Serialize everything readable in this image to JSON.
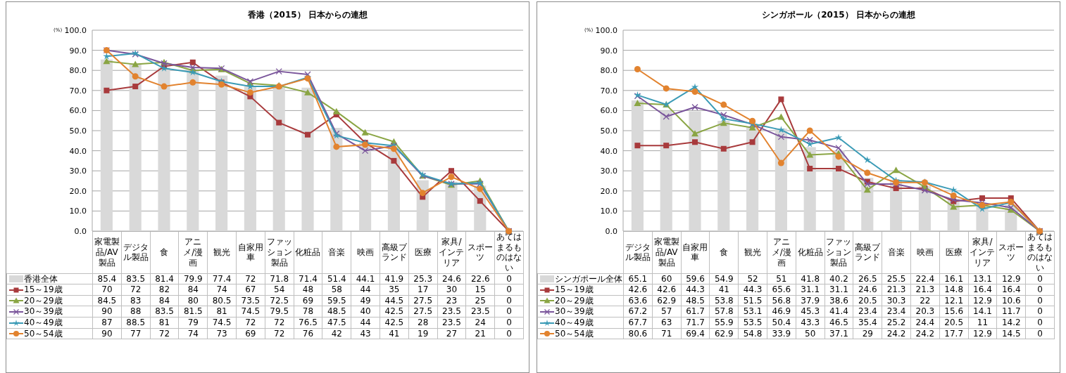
{
  "chart_data": [
    {
      "type": "bar",
      "title": "香港（2015） 日本からの連想",
      "ylabel": "(%)",
      "ylim": [
        0,
        100
      ],
      "yticks": [
        {
          "value": 0,
          "label": "0.0"
        },
        {
          "value": 10,
          "label": "10.0"
        },
        {
          "value": 20,
          "label": "20.0"
        },
        {
          "value": 30,
          "label": "30.0"
        },
        {
          "value": 40,
          "label": "40.0"
        },
        {
          "value": 50,
          "label": "50.0"
        },
        {
          "value": 60,
          "label": "60.0"
        },
        {
          "value": 70,
          "label": "70.0"
        },
        {
          "value": 80,
          "label": "80.0"
        },
        {
          "value": 90,
          "label": "90.0"
        },
        {
          "value": 100,
          "label": "100.0"
        }
      ],
      "grid": "y",
      "legend": "bottom",
      "data_labels": true,
      "categories": [
        "家電製品/AV製品",
        "デジタル製品",
        "食",
        "アニメ/漫画",
        "観光",
        "自家用車",
        "ファッション製品",
        "化粧品",
        "音楽",
        "映画",
        "高級ブランド",
        "医療",
        "家具/インテリア",
        "スポーツ",
        "あてはまるものはない"
      ],
      "series": [
        {
          "name": "香港全体",
          "color": "#d9d9d9",
          "values": [
            85.4,
            83.5,
            81.4,
            79.9,
            77.4,
            72,
            71.8,
            71.4,
            51.4,
            44.1,
            41.9,
            25.3,
            24.6,
            22.6,
            0
          ]
        },
        {
          "name": "15～19歳",
          "type": "line",
          "marker": "square",
          "color": "#a83a3c",
          "values": [
            70,
            72,
            82,
            84,
            74,
            67,
            54,
            48,
            58,
            44,
            35,
            17,
            30,
            15,
            0
          ]
        },
        {
          "name": "20～29歳",
          "type": "line",
          "marker": "triangle",
          "color": "#8aa544",
          "values": [
            84.5,
            83,
            84,
            80,
            80.5,
            73.5,
            72.5,
            69,
            59.5,
            49,
            44.5,
            27.5,
            23,
            25,
            0
          ]
        },
        {
          "name": "30～39歳",
          "type": "line",
          "marker": "cross",
          "color": "#7a559b",
          "values": [
            90,
            88,
            83.5,
            81.5,
            81,
            74.5,
            79.5,
            78,
            48.5,
            40,
            42.5,
            27.5,
            23.5,
            23.5,
            0
          ]
        },
        {
          "name": "40～49歳",
          "type": "line",
          "marker": "star",
          "color": "#3b9bb6",
          "values": [
            87,
            88.5,
            81,
            79,
            74.5,
            72,
            72,
            76.5,
            47.5,
            44,
            42.5,
            28,
            23.5,
            24,
            0
          ]
        },
        {
          "name": "50～54歳",
          "type": "line",
          "marker": "circle",
          "color": "#e2832f",
          "values": [
            90,
            77,
            72,
            74,
            73,
            69,
            72,
            76,
            42,
            43,
            41,
            19,
            27,
            21,
            0
          ]
        }
      ]
    },
    {
      "type": "bar",
      "title": "シンガポール（2015） 日本からの連想",
      "ylabel": "(%)",
      "ylim": [
        0,
        100
      ],
      "yticks": [
        {
          "value": 0,
          "label": "0.0"
        },
        {
          "value": 10,
          "label": "10.0"
        },
        {
          "value": 20,
          "label": "20.0"
        },
        {
          "value": 30,
          "label": "30.0"
        },
        {
          "value": 40,
          "label": "40.0"
        },
        {
          "value": 50,
          "label": "50.0"
        },
        {
          "value": 60,
          "label": "60.0"
        },
        {
          "value": 70,
          "label": "70.0"
        },
        {
          "value": 80,
          "label": "80.0"
        },
        {
          "value": 90,
          "label": "90.0"
        },
        {
          "value": 100,
          "label": "100.0"
        }
      ],
      "grid": "y",
      "legend": "bottom",
      "data_labels": true,
      "categories": [
        "デジタル製品",
        "家電製品/AV製品",
        "自家用車",
        "食",
        "観光",
        "アニメ/漫画",
        "化粧品",
        "ファッション製品",
        "高級ブランド",
        "音楽",
        "映画",
        "医療",
        "家具/インテリア",
        "スポーツ",
        "あてはまるものはない"
      ],
      "series": [
        {
          "name": "シンガポール全体",
          "color": "#d9d9d9",
          "values": [
            65.1,
            60,
            59.6,
            54.9,
            52,
            51,
            41.8,
            40.2,
            26.5,
            25.5,
            22.4,
            16.1,
            13.1,
            12.9,
            0
          ]
        },
        {
          "name": "15～19歳",
          "type": "line",
          "marker": "square",
          "color": "#a83a3c",
          "values": [
            42.6,
            42.6,
            44.3,
            41,
            44.3,
            65.6,
            31.1,
            31.1,
            24.6,
            21.3,
            21.3,
            14.8,
            16.4,
            16.4,
            0
          ]
        },
        {
          "name": "20～29歳",
          "type": "line",
          "marker": "triangle",
          "color": "#8aa544",
          "values": [
            63.6,
            62.9,
            48.5,
            53.8,
            51.5,
            56.8,
            37.9,
            38.6,
            20.5,
            30.3,
            22,
            12.1,
            12.9,
            10.6,
            0
          ]
        },
        {
          "name": "30～39歳",
          "type": "line",
          "marker": "cross",
          "color": "#7a559b",
          "values": [
            67.2,
            57,
            61.7,
            57.8,
            53.1,
            46.9,
            45.3,
            41.4,
            23.4,
            23.4,
            20.3,
            15.6,
            14.1,
            11.7,
            0
          ]
        },
        {
          "name": "40～49歳",
          "type": "line",
          "marker": "star",
          "color": "#3b9bb6",
          "values": [
            67.7,
            63,
            71.7,
            55.9,
            53.5,
            50.4,
            43.3,
            46.5,
            35.4,
            25.2,
            24.4,
            20.5,
            11,
            14.2,
            0
          ]
        },
        {
          "name": "50～54歳",
          "type": "line",
          "marker": "circle",
          "color": "#e2832f",
          "values": [
            80.6,
            71,
            69.4,
            62.9,
            54.8,
            33.9,
            50,
            37.1,
            29,
            24.2,
            24.2,
            17.7,
            12.9,
            14.5,
            0
          ]
        }
      ]
    }
  ]
}
